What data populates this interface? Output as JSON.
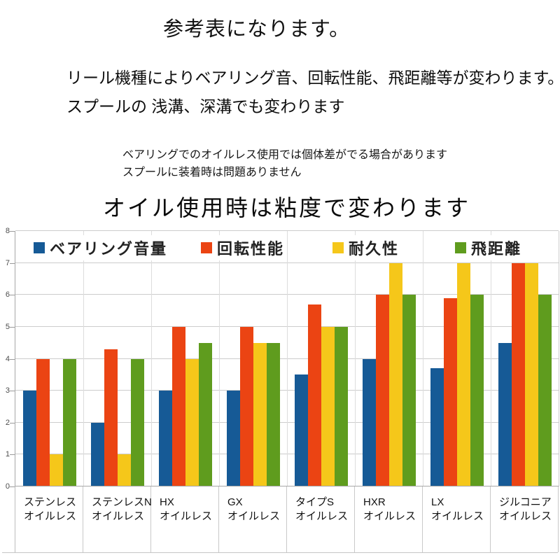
{
  "texts": {
    "title": "参考表になります。",
    "intro_line1": "リール機種によりベアリング音、回転性能、飛距離等が変わります。",
    "intro_line2": "スプールの 浅溝、深溝でも変わります",
    "note_line1": "ベアリングでのオイルレス使用では個体差がでる場合があります",
    "note_line2": "スプールに装着時は問題ありません",
    "statement": "オイル使用時は粘度で変わります"
  },
  "chart_data": {
    "type": "bar",
    "categories": [
      [
        "ステンレス",
        "オイルレス"
      ],
      [
        "ステンレスN",
        "オイルレス"
      ],
      [
        "HX",
        "オイルレス"
      ],
      [
        "GX",
        "オイルレス"
      ],
      [
        "タイプS",
        "オイルレス"
      ],
      [
        "HXR",
        "オイルレス"
      ],
      [
        "LX",
        "オイルレス"
      ],
      [
        "ジルコニア",
        "オイルレス"
      ]
    ],
    "series": [
      {
        "name": "ベアリング音量",
        "color": "#165a96",
        "values": [
          3,
          2,
          3,
          3,
          3.5,
          4,
          3.7,
          4.5
        ]
      },
      {
        "name": "回転性能",
        "color": "#eb4413",
        "values": [
          4,
          4.3,
          5,
          5,
          5.7,
          6,
          5.9,
          7
        ]
      },
      {
        "name": "耐久性",
        "color": "#f5c71a",
        "values": [
          1,
          1,
          4,
          4.5,
          5,
          7,
          7,
          7
        ]
      },
      {
        "name": "飛距離",
        "color": "#5f9c1e",
        "values": [
          4,
          4,
          4.5,
          4.5,
          5,
          6,
          6,
          6
        ]
      }
    ],
    "title": "",
    "xlabel": "",
    "ylabel": "",
    "ylim": [
      0,
      8
    ],
    "yticks": [
      0,
      1,
      2,
      3,
      4,
      5,
      6,
      7,
      8
    ],
    "grid": true,
    "legend_position": "top"
  }
}
